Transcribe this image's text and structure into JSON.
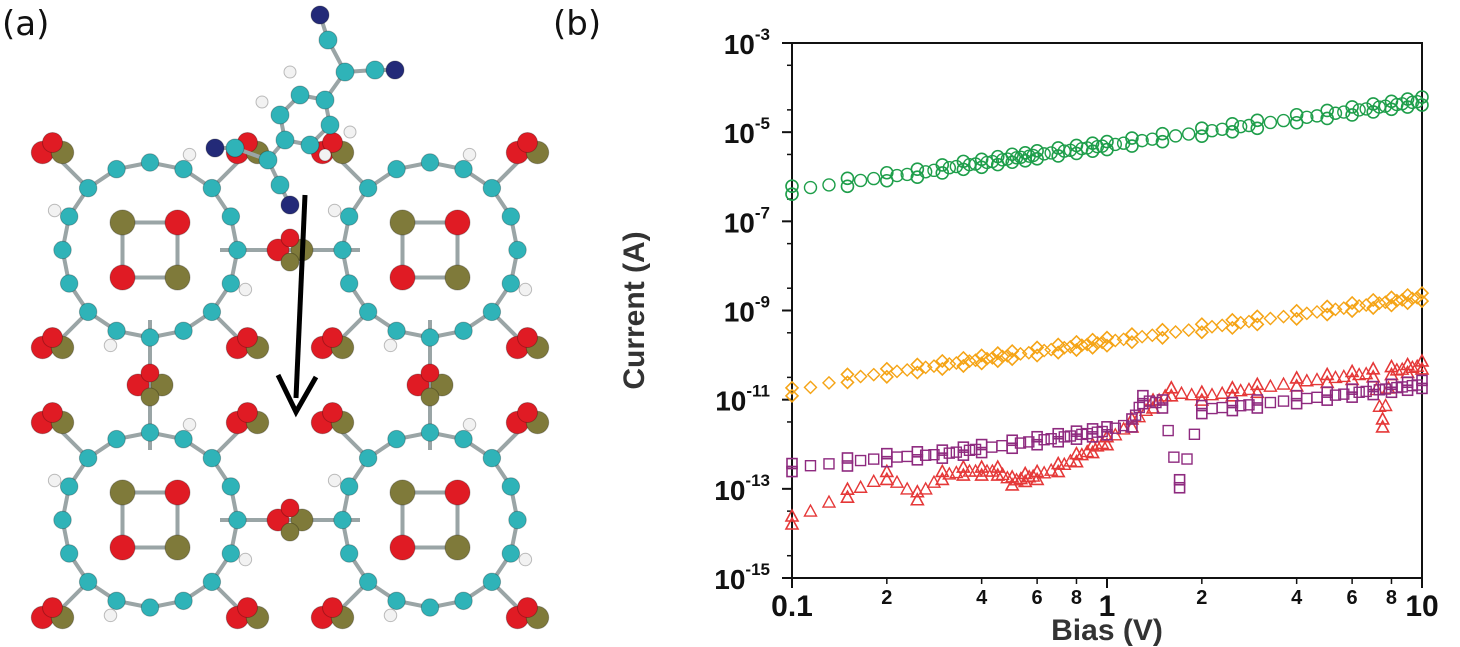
{
  "panels": {
    "a": {
      "label": "(a)"
    },
    "b": {
      "label": "(b)"
    }
  },
  "colors": {
    "carbon": "#2fb3b8",
    "oxygen": "#e01b24",
    "metal": "#7f7a3a",
    "hydrogen": "#f2f2f2",
    "nitrogen": "#232a78",
    "arrow": "#000000"
  },
  "chart_data": {
    "type": "scatter",
    "xlabel": "Bias (V)",
    "ylabel": "Current (A)",
    "xscale": "log",
    "yscale": "log",
    "xlim": [
      0.1,
      10
    ],
    "ylim": [
      1e-15,
      0.001
    ],
    "x_major_ticks": [
      {
        "value": 0.1,
        "label": "0.1"
      },
      {
        "value": 1,
        "label": "1"
      },
      {
        "value": 10,
        "label": "10"
      }
    ],
    "x_minor_ticks": [
      {
        "value": 0.2,
        "label": "2"
      },
      {
        "value": 0.4,
        "label": "4"
      },
      {
        "value": 0.6,
        "label": "6"
      },
      {
        "value": 0.8,
        "label": "8"
      },
      {
        "value": 2,
        "label": "2"
      },
      {
        "value": 4,
        "label": "4"
      },
      {
        "value": 6,
        "label": "6"
      },
      {
        "value": 8,
        "label": "8"
      }
    ],
    "y_ticks": [
      {
        "value": 0.001,
        "base": "10",
        "exp": "-3"
      },
      {
        "value": 1e-05,
        "base": "10",
        "exp": "-5"
      },
      {
        "value": 1e-07,
        "base": "10",
        "exp": "-7"
      },
      {
        "value": 1e-09,
        "base": "10",
        "exp": "-9"
      },
      {
        "value": 1e-11,
        "base": "10",
        "exp": "-11"
      },
      {
        "value": 1e-13,
        "base": "10",
        "exp": "-13"
      },
      {
        "value": 1e-15,
        "base": "10",
        "exp": "-15"
      }
    ],
    "grid": false,
    "series": [
      {
        "color": "#1e9e4a",
        "marker": "circle",
        "points": [
          [
            0.1,
            5e-07
          ],
          [
            0.15,
            7.5e-07
          ],
          [
            0.2,
            1e-06
          ],
          [
            0.25,
            1.2e-06
          ],
          [
            0.3,
            1.5e-06
          ],
          [
            0.35,
            1.8e-06
          ],
          [
            0.4,
            2e-06
          ],
          [
            0.45,
            2.3e-06
          ],
          [
            0.5,
            2.6e-06
          ],
          [
            0.55,
            2.8e-06
          ],
          [
            0.6,
            3.1e-06
          ],
          [
            0.7,
            3.6e-06
          ],
          [
            0.8,
            4.1e-06
          ],
          [
            0.9,
            4.6e-06
          ],
          [
            1,
            5e-06
          ],
          [
            1.2,
            6e-06
          ],
          [
            1.5,
            7.5e-06
          ],
          [
            2,
            1e-05
          ],
          [
            2.5,
            1.25e-05
          ],
          [
            3,
            1.5e-05
          ],
          [
            4,
            2e-05
          ],
          [
            5,
            2.5e-05
          ],
          [
            6,
            3e-05
          ],
          [
            7,
            3.5e-05
          ],
          [
            8,
            4e-05
          ],
          [
            9,
            4.5e-05
          ],
          [
            10,
            5e-05
          ]
        ]
      },
      {
        "color": "#f5a416",
        "marker": "diamond",
        "points": [
          [
            0.1,
            1.5e-11
          ],
          [
            0.15,
            3e-11
          ],
          [
            0.2,
            4e-11
          ],
          [
            0.25,
            5e-11
          ],
          [
            0.3,
            6e-11
          ],
          [
            0.35,
            7e-11
          ],
          [
            0.4,
            8e-11
          ],
          [
            0.45,
            9e-11
          ],
          [
            0.5,
            1e-10
          ],
          [
            0.6,
            1.2e-10
          ],
          [
            0.7,
            1.4e-10
          ],
          [
            0.8,
            1.6e-10
          ],
          [
            0.9,
            1.8e-10
          ],
          [
            1,
            2e-10
          ],
          [
            1.2,
            2.4e-10
          ],
          [
            1.5,
            3e-10
          ],
          [
            2,
            4e-10
          ],
          [
            2.5,
            5e-10
          ],
          [
            3,
            6e-10
          ],
          [
            4,
            8e-10
          ],
          [
            5,
            1e-09
          ],
          [
            6,
            1.2e-09
          ],
          [
            7,
            1.4e-09
          ],
          [
            8,
            1.6e-09
          ],
          [
            9,
            1.8e-09
          ],
          [
            10,
            2e-09
          ]
        ]
      },
      {
        "color": "#e53838",
        "marker": "triangle",
        "points": [
          [
            0.1,
            2e-14
          ],
          [
            0.15,
            8e-14
          ],
          [
            0.2,
            2e-13
          ],
          [
            0.25,
            7e-14
          ],
          [
            0.3,
            2e-13
          ],
          [
            0.35,
            2.5e-13
          ],
          [
            0.4,
            2.5e-13
          ],
          [
            0.45,
            2.5e-13
          ],
          [
            0.5,
            1.5e-13
          ],
          [
            0.55,
            1.8e-13
          ],
          [
            0.6,
            2e-13
          ],
          [
            0.7,
            3e-13
          ],
          [
            0.8,
            5e-13
          ],
          [
            0.9,
            8e-13
          ],
          [
            1,
            1.2e-12
          ],
          [
            1.2,
            3e-12
          ],
          [
            1.4,
            8e-12
          ],
          [
            1.6,
            1.5e-11
          ],
          [
            2,
            1.2e-11
          ],
          [
            2.5,
            1.5e-11
          ],
          [
            3,
            1.8e-11
          ],
          [
            4,
            2.5e-11
          ],
          [
            5,
            3e-11
          ],
          [
            6,
            3.5e-11
          ],
          [
            7,
            4e-11
          ],
          [
            7.5,
            3e-12
          ],
          [
            8,
            4.5e-11
          ],
          [
            9,
            5e-11
          ],
          [
            10,
            6e-11
          ]
        ]
      },
      {
        "color": "#8e2a7f",
        "marker": "square",
        "points": [
          [
            0.1,
            3e-13
          ],
          [
            0.15,
            4e-13
          ],
          [
            0.2,
            5e-13
          ],
          [
            0.25,
            5.5e-13
          ],
          [
            0.3,
            6e-13
          ],
          [
            0.35,
            7e-13
          ],
          [
            0.4,
            8e-13
          ],
          [
            0.5,
            1e-12
          ],
          [
            0.6,
            1.2e-12
          ],
          [
            0.7,
            1.4e-12
          ],
          [
            0.8,
            1.6e-12
          ],
          [
            0.9,
            1.8e-12
          ],
          [
            1,
            2e-12
          ],
          [
            1.2,
            3e-12
          ],
          [
            1.3,
            1e-11
          ],
          [
            1.5,
            8e-12
          ],
          [
            1.7,
            1.3e-13
          ],
          [
            2,
            6e-12
          ],
          [
            2.5,
            7e-12
          ],
          [
            3,
            8e-12
          ],
          [
            4,
            1e-11
          ],
          [
            5,
            1.2e-11
          ],
          [
            6,
            1.4e-11
          ],
          [
            7,
            1.6e-11
          ],
          [
            8,
            1.8e-11
          ],
          [
            9,
            2e-11
          ],
          [
            10,
            2.2e-11
          ]
        ]
      }
    ]
  }
}
